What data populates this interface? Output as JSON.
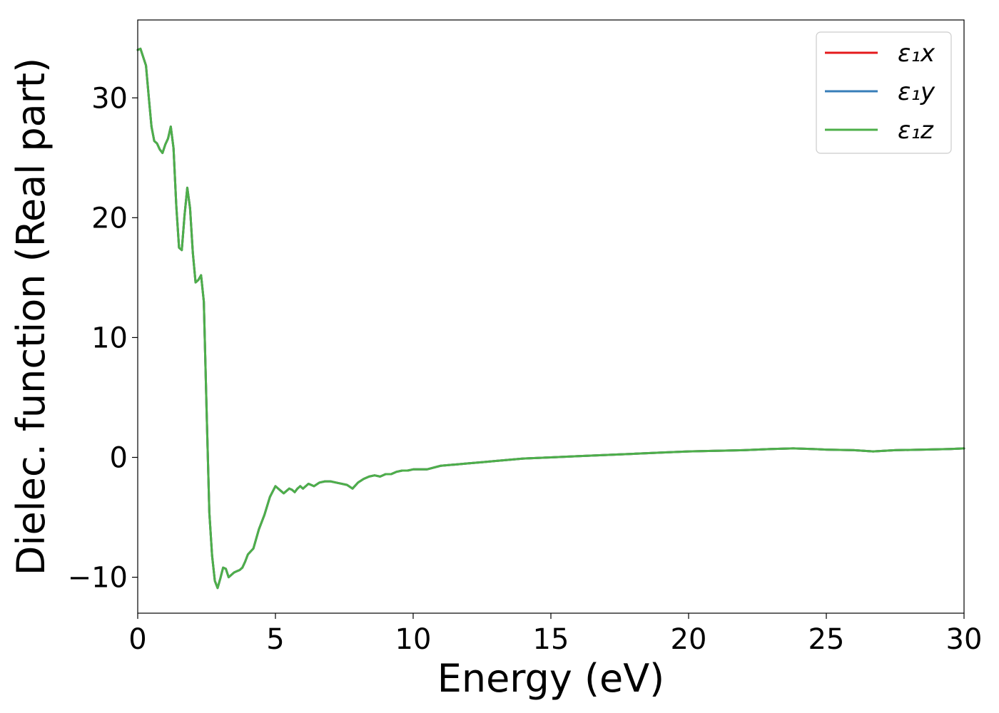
{
  "chart_data": {
    "type": "line",
    "xlabel": "Energy (eV)",
    "ylabel": "Dielec. function (Real part)",
    "xlim": [
      0,
      30
    ],
    "ylim": [
      -13,
      36.5
    ],
    "x_ticks": [
      0,
      5,
      10,
      15,
      20,
      25,
      30
    ],
    "x_tick_labels": [
      "0",
      "5",
      "10",
      "15",
      "20",
      "25",
      "30"
    ],
    "y_ticks": [
      -10,
      0,
      10,
      20,
      30
    ],
    "y_tick_labels": [
      "−10",
      "0",
      "10",
      "20",
      "30"
    ],
    "grid": false,
    "legend_position": "top-right",
    "x": [
      0,
      0.1,
      0.2,
      0.3,
      0.4,
      0.5,
      0.6,
      0.7,
      0.8,
      0.9,
      1.0,
      1.1,
      1.2,
      1.3,
      1.4,
      1.5,
      1.6,
      1.7,
      1.8,
      1.9,
      2.0,
      2.1,
      2.2,
      2.3,
      2.4,
      2.5,
      2.6,
      2.7,
      2.8,
      2.9,
      3.0,
      3.1,
      3.2,
      3.3,
      3.4,
      3.5,
      3.6,
      3.7,
      3.8,
      3.9,
      4.0,
      4.2,
      4.4,
      4.6,
      4.8,
      5.0,
      5.1,
      5.2,
      5.3,
      5.4,
      5.5,
      5.6,
      5.7,
      5.8,
      5.9,
      6.0,
      6.2,
      6.4,
      6.6,
      6.8,
      7.0,
      7.2,
      7.4,
      7.6,
      7.8,
      8.0,
      8.2,
      8.4,
      8.6,
      8.8,
      9.0,
      9.2,
      9.4,
      9.6,
      9.8,
      10.0,
      10.5,
      11.0,
      11.5,
      12.0,
      12.5,
      13.0,
      14.0,
      15.0,
      16.0,
      17.0,
      18.0,
      19.0,
      20.0,
      21.0,
      22.0,
      23.0,
      23.8,
      24.5,
      25.0,
      26.0,
      26.7,
      27.5,
      28.5,
      29.5,
      30.0
    ],
    "series": [
      {
        "name": "ε₁x",
        "color": "#e41a1c",
        "values": [
          34.0,
          34.1,
          33.4,
          32.7,
          30.1,
          27.6,
          26.4,
          26.2,
          25.7,
          25.4,
          26.1,
          26.6,
          27.6,
          25.8,
          21.0,
          17.5,
          17.3,
          20.2,
          22.5,
          20.8,
          17.1,
          14.6,
          14.8,
          15.2,
          13.0,
          4.0,
          -4.6,
          -8.2,
          -10.3,
          -10.9,
          -10.1,
          -9.2,
          -9.3,
          -10.0,
          -9.8,
          -9.6,
          -9.5,
          -9.4,
          -9.2,
          -8.7,
          -8.1,
          -7.6,
          -6.0,
          -4.8,
          -3.3,
          -2.4,
          -2.6,
          -2.8,
          -3.0,
          -2.8,
          -2.6,
          -2.7,
          -2.9,
          -2.6,
          -2.4,
          -2.6,
          -2.2,
          -2.4,
          -2.1,
          -2.0,
          -2.0,
          -2.1,
          -2.2,
          -2.3,
          -2.6,
          -2.1,
          -1.8,
          -1.6,
          -1.5,
          -1.6,
          -1.4,
          -1.4,
          -1.2,
          -1.1,
          -1.1,
          -1.0,
          -1.0,
          -0.7,
          -0.6,
          -0.5,
          -0.4,
          -0.3,
          -0.1,
          0.0,
          0.1,
          0.2,
          0.3,
          0.4,
          0.5,
          0.55,
          0.6,
          0.7,
          0.75,
          0.7,
          0.65,
          0.6,
          0.5,
          0.6,
          0.65,
          0.7,
          0.75
        ]
      },
      {
        "name": "ε₁y",
        "color": "#377eb8",
        "values": [
          34.0,
          34.1,
          33.4,
          32.7,
          30.1,
          27.6,
          26.4,
          26.2,
          25.7,
          25.4,
          26.1,
          26.6,
          27.6,
          25.8,
          21.0,
          17.5,
          17.3,
          20.2,
          22.5,
          20.8,
          17.1,
          14.6,
          14.8,
          15.2,
          13.0,
          4.0,
          -4.6,
          -8.2,
          -10.3,
          -10.9,
          -10.1,
          -9.2,
          -9.3,
          -10.0,
          -9.8,
          -9.6,
          -9.5,
          -9.4,
          -9.2,
          -8.7,
          -8.1,
          -7.6,
          -6.0,
          -4.8,
          -3.3,
          -2.4,
          -2.6,
          -2.8,
          -3.0,
          -2.8,
          -2.6,
          -2.7,
          -2.9,
          -2.6,
          -2.4,
          -2.6,
          -2.2,
          -2.4,
          -2.1,
          -2.0,
          -2.0,
          -2.1,
          -2.2,
          -2.3,
          -2.6,
          -2.1,
          -1.8,
          -1.6,
          -1.5,
          -1.6,
          -1.4,
          -1.4,
          -1.2,
          -1.1,
          -1.1,
          -1.0,
          -1.0,
          -0.7,
          -0.6,
          -0.5,
          -0.4,
          -0.3,
          -0.1,
          0.0,
          0.1,
          0.2,
          0.3,
          0.4,
          0.5,
          0.55,
          0.6,
          0.7,
          0.75,
          0.7,
          0.65,
          0.6,
          0.5,
          0.6,
          0.65,
          0.7,
          0.75
        ]
      },
      {
        "name": "ε₁z",
        "color": "#4daf4a",
        "values": [
          34.0,
          34.1,
          33.4,
          32.7,
          30.1,
          27.6,
          26.4,
          26.2,
          25.7,
          25.4,
          26.1,
          26.6,
          27.6,
          25.8,
          21.0,
          17.5,
          17.3,
          20.2,
          22.5,
          20.8,
          17.1,
          14.6,
          14.8,
          15.2,
          13.0,
          4.0,
          -4.6,
          -8.2,
          -10.3,
          -10.9,
          -10.1,
          -9.2,
          -9.3,
          -10.0,
          -9.8,
          -9.6,
          -9.5,
          -9.4,
          -9.2,
          -8.7,
          -8.1,
          -7.6,
          -6.0,
          -4.8,
          -3.3,
          -2.4,
          -2.6,
          -2.8,
          -3.0,
          -2.8,
          -2.6,
          -2.7,
          -2.9,
          -2.6,
          -2.4,
          -2.6,
          -2.2,
          -2.4,
          -2.1,
          -2.0,
          -2.0,
          -2.1,
          -2.2,
          -2.3,
          -2.6,
          -2.1,
          -1.8,
          -1.6,
          -1.5,
          -1.6,
          -1.4,
          -1.4,
          -1.2,
          -1.1,
          -1.1,
          -1.0,
          -1.0,
          -0.7,
          -0.6,
          -0.5,
          -0.4,
          -0.3,
          -0.1,
          0.0,
          0.1,
          0.2,
          0.3,
          0.4,
          0.5,
          0.55,
          0.6,
          0.7,
          0.75,
          0.7,
          0.65,
          0.6,
          0.5,
          0.6,
          0.65,
          0.7,
          0.75
        ]
      }
    ]
  }
}
